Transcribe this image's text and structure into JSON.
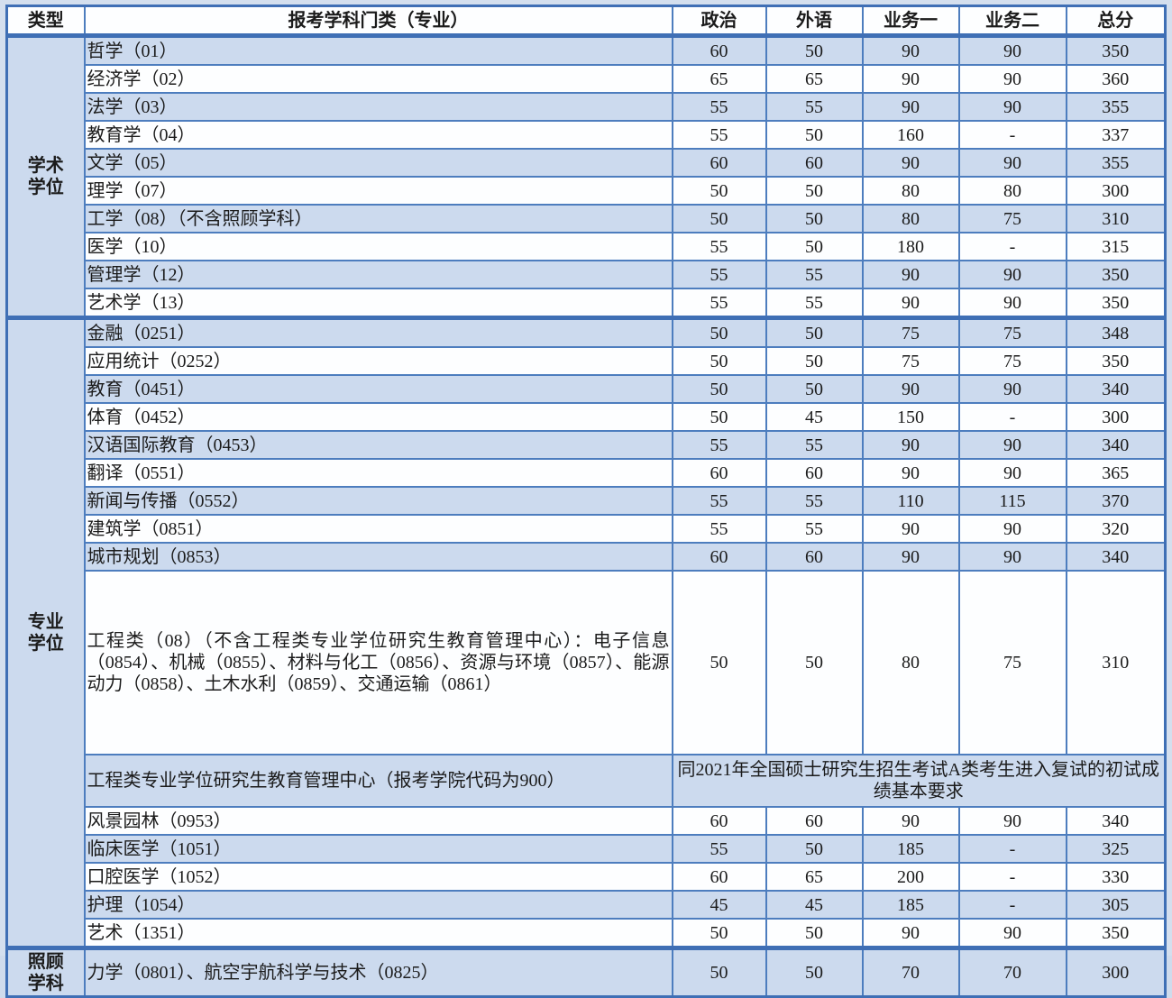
{
  "colors": {
    "border_blue": "#4d7dbe",
    "separator_blue": "#3f6fb5",
    "row_alt_blue": "#ccdaee",
    "row_white": "#fdfeff",
    "page_background": "#d4dfee",
    "text": "#1b1b1b"
  },
  "table": {
    "header": {
      "type": "类型",
      "subject": "报考学科门类（专业）",
      "score_columns": [
        "政治",
        "外语",
        "业务一",
        "业务二",
        "总分"
      ]
    },
    "sections": [
      {
        "type_label": [
          "学术",
          "学位"
        ],
        "rows": [
          {
            "label": "哲学（01）",
            "scores": [
              "60",
              "50",
              "90",
              "90",
              "350"
            ]
          },
          {
            "label": "经济学（02）",
            "scores": [
              "65",
              "65",
              "90",
              "90",
              "360"
            ]
          },
          {
            "label": "法学（03）",
            "scores": [
              "55",
              "55",
              "90",
              "90",
              "355"
            ]
          },
          {
            "label": "教育学（04）",
            "scores": [
              "55",
              "50",
              "160",
              "-",
              "337"
            ]
          },
          {
            "label": "文学（05）",
            "scores": [
              "60",
              "60",
              "90",
              "90",
              "355"
            ]
          },
          {
            "label": "理学（07）",
            "scores": [
              "50",
              "50",
              "80",
              "80",
              "300"
            ]
          },
          {
            "label": "工学（08）（不含照顾学科）",
            "scores": [
              "50",
              "50",
              "80",
              "75",
              "310"
            ]
          },
          {
            "label": "医学（10）",
            "scores": [
              "55",
              "50",
              "180",
              "-",
              "315"
            ]
          },
          {
            "label": "管理学（12）",
            "scores": [
              "55",
              "55",
              "90",
              "90",
              "350"
            ]
          },
          {
            "label": "艺术学（13）",
            "scores": [
              "55",
              "55",
              "90",
              "90",
              "350"
            ]
          }
        ]
      },
      {
        "type_label": [
          "专业",
          "学位"
        ],
        "rows": [
          {
            "label": "金融（0251）",
            "scores": [
              "50",
              "50",
              "75",
              "75",
              "348"
            ]
          },
          {
            "label": "应用统计（0252）",
            "scores": [
              "50",
              "50",
              "75",
              "75",
              "350"
            ]
          },
          {
            "label": "教育（0451）",
            "scores": [
              "50",
              "50",
              "90",
              "90",
              "340"
            ]
          },
          {
            "label": "体育（0452）",
            "scores": [
              "50",
              "45",
              "150",
              "-",
              "300"
            ]
          },
          {
            "label": "汉语国际教育（0453）",
            "scores": [
              "55",
              "55",
              "90",
              "90",
              "340"
            ]
          },
          {
            "label": "翻译（0551）",
            "scores": [
              "60",
              "60",
              "90",
              "90",
              "365"
            ]
          },
          {
            "label": "新闻与传播（0552）",
            "scores": [
              "55",
              "55",
              "110",
              "115",
              "370"
            ]
          },
          {
            "label": "建筑学（0851）",
            "scores": [
              "55",
              "55",
              "90",
              "90",
              "320"
            ]
          },
          {
            "label": "城市规划（0853）",
            "scores": [
              "60",
              "60",
              "90",
              "90",
              "340"
            ]
          },
          {
            "label": "工程类（08）（不含工程类专业学位研究生教育管理中心）：电子信息（0854）、机械（0855）、材料与化工（0856）、资源与环境（0857）、能源动力（0858）、土木水利（0859）、交通运输（0861）",
            "scores": [
              "50",
              "50",
              "80",
              "75",
              "310"
            ],
            "tall": true
          },
          {
            "label": "工程类专业学位研究生教育管理中心（报考学院代码为900）",
            "note": "同2021年全国硕士研究生招生考试A类考生进入复试的初试成绩基本要求"
          },
          {
            "label": "风景园林（0953）",
            "scores": [
              "60",
              "60",
              "90",
              "90",
              "340"
            ]
          },
          {
            "label": "临床医学（1051）",
            "scores": [
              "55",
              "50",
              "185",
              "-",
              "325"
            ]
          },
          {
            "label": "口腔医学（1052）",
            "scores": [
              "60",
              "65",
              "200",
              "-",
              "330"
            ]
          },
          {
            "label": "护理（1054）",
            "scores": [
              "45",
              "45",
              "185",
              "-",
              "305"
            ]
          },
          {
            "label": "艺术（1351）",
            "scores": [
              "50",
              "50",
              "90",
              "90",
              "350"
            ]
          }
        ]
      },
      {
        "type_label": [
          "照顾",
          "学科"
        ],
        "rows": [
          {
            "label": "力学（0801）、航空宇航科学与技术（0825）",
            "scores": [
              "50",
              "50",
              "70",
              "70",
              "300"
            ]
          }
        ]
      }
    ]
  }
}
